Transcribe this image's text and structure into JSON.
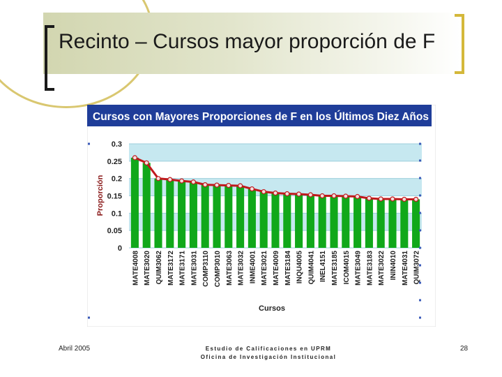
{
  "slide": {
    "title": "Recinto – Cursos mayor proporción de F",
    "footer_date": "Abril 2005",
    "footer_line1": "Estudio de Calificaciones en UPRM",
    "footer_line2": "Oficina de Investigación Institucional",
    "page_number": "28"
  },
  "colors": {
    "header": "#1f3d99",
    "band": "#c6e8f0",
    "bar": "#11a81a",
    "line": "#c0191c",
    "marker_fill": "#f3dede"
  },
  "chart_data": {
    "type": "bar",
    "title": "Cursos con Mayores Proporciones de F en los Últimos Diez Años",
    "xlabel": "Cursos",
    "ylabel": "Proporción",
    "ylim": [
      0,
      0.3
    ],
    "yticks": [
      "0",
      "0.05",
      "0.1",
      "0.15",
      "0.2",
      "0.25",
      "0.3"
    ],
    "grid": true,
    "categories": [
      "MATE4008",
      "MATE3020",
      "QUIM3062",
      "MATE3172",
      "MATE3171",
      "MATE3031",
      "COMP3110",
      "COMP3010",
      "MATE3063",
      "MATE3032",
      "INME4001",
      "MATE3021",
      "MATE4009",
      "MATE3184",
      "INQU4005",
      "QUIM4041",
      "INEL4151",
      "MATE3185",
      "ICOM4015",
      "MATE3049",
      "MATE3183",
      "MATE3022",
      "ININ4010",
      "MATE4031",
      "QUIM3072"
    ],
    "values": [
      0.26,
      0.245,
      0.2,
      0.197,
      0.193,
      0.19,
      0.182,
      0.181,
      0.18,
      0.179,
      0.17,
      0.162,
      0.158,
      0.156,
      0.155,
      0.153,
      0.15,
      0.15,
      0.149,
      0.148,
      0.143,
      0.141,
      0.141,
      0.14,
      0.14
    ]
  }
}
